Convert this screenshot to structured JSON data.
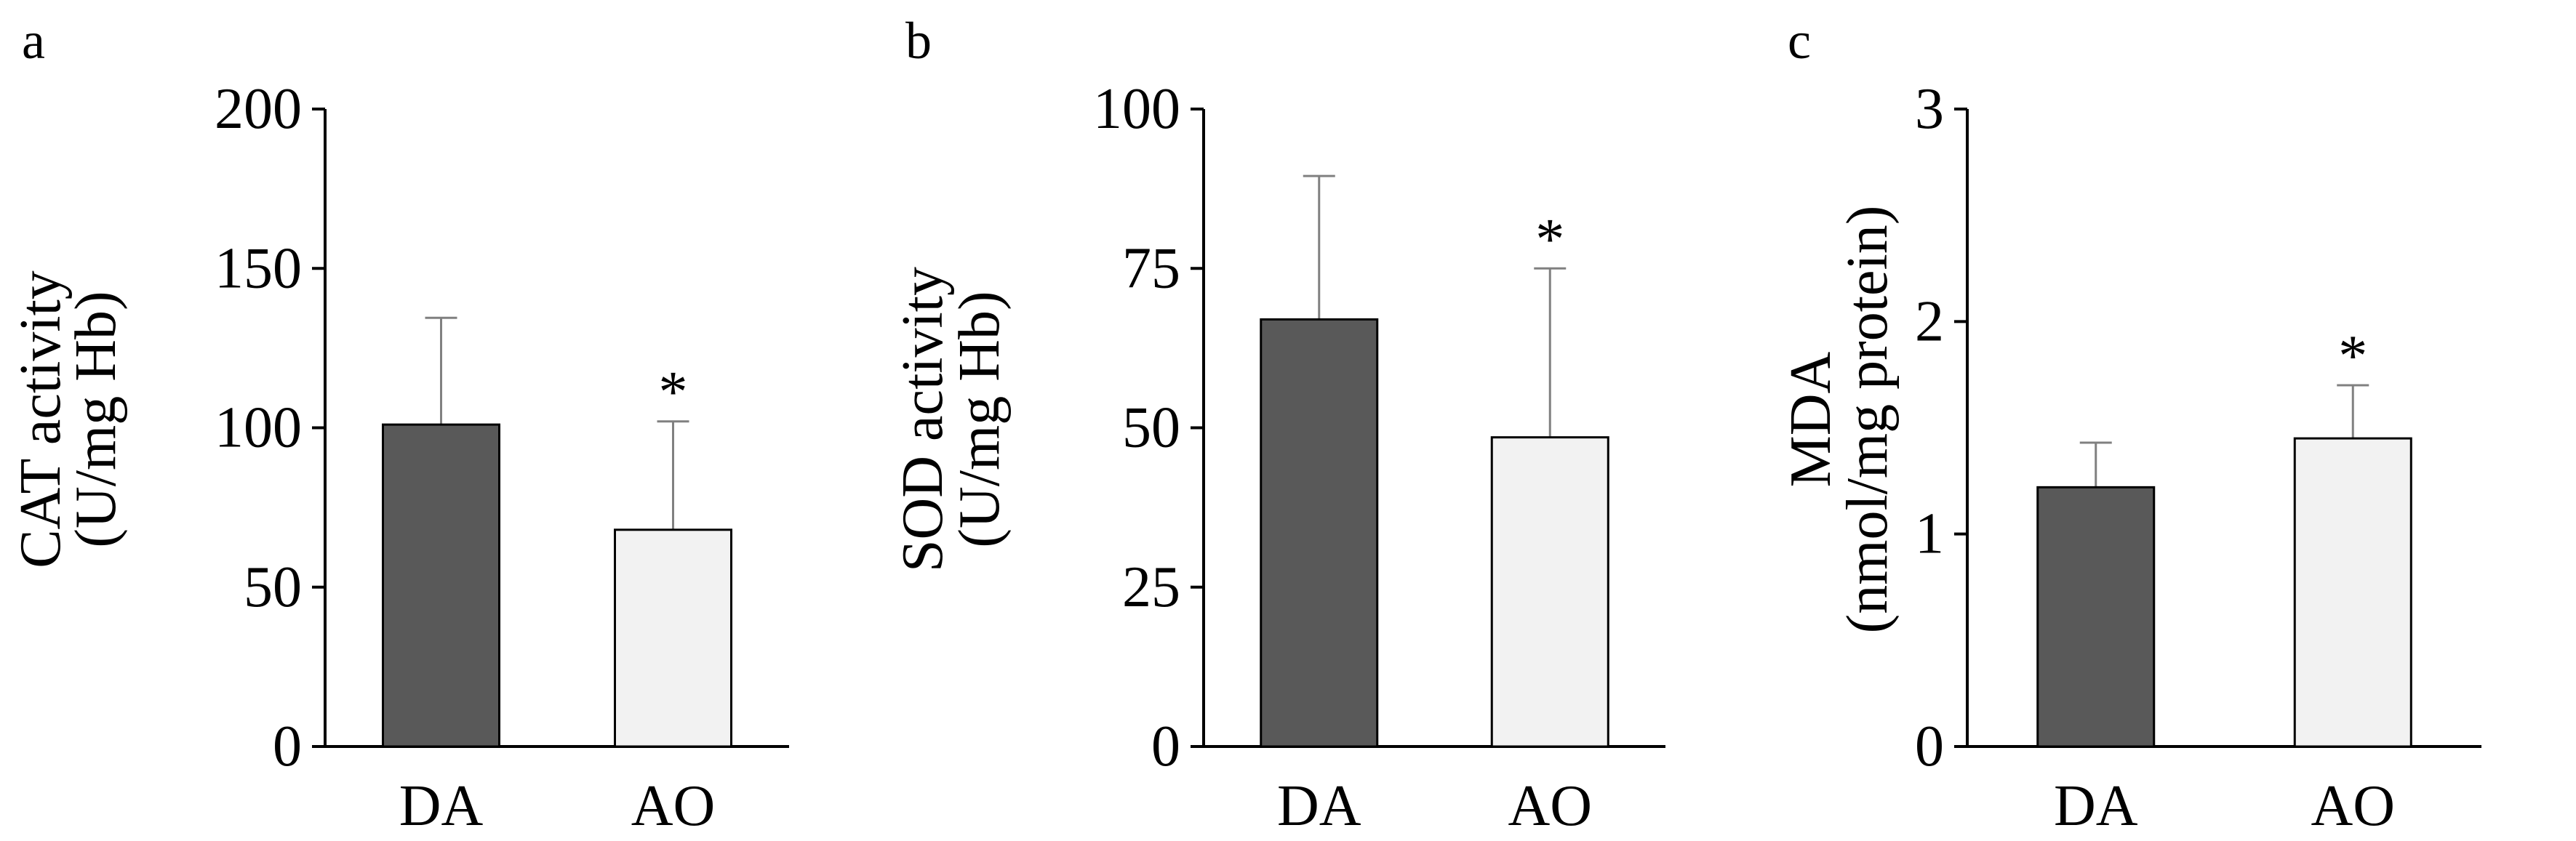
{
  "figure": {
    "background": "#ffffff",
    "bar_colors": {
      "DA": "#595959",
      "AO": "#f2f2f2"
    },
    "errorbar_color": "#808080",
    "axis_color": "#000000"
  },
  "chart_data": [
    {
      "type": "bar",
      "panel_label": "a",
      "ylabel_line1": "CAT activity",
      "ylabel_line2": "(U/mg Hb)",
      "categories": [
        "DA",
        "AO"
      ],
      "values": [
        101,
        68
      ],
      "errors": [
        33.5,
        34
      ],
      "significance": [
        "",
        "*"
      ],
      "ylim": [
        0,
        200
      ],
      "yticks": [
        0,
        50,
        100,
        150,
        200
      ],
      "ytick_labels": [
        "0",
        "50",
        "100",
        "150",
        "200"
      ]
    },
    {
      "type": "bar",
      "panel_label": "b",
      "ylabel_line1": "SOD activity",
      "ylabel_line2": "(U/mg Hb)",
      "categories": [
        "DA",
        "AO"
      ],
      "values": [
        67,
        48.5
      ],
      "errors": [
        22.5,
        26.5
      ],
      "significance": [
        "",
        "*"
      ],
      "ylim": [
        0,
        100
      ],
      "yticks": [
        0,
        25,
        50,
        75,
        100
      ],
      "ytick_labels": [
        "0",
        "25",
        "50",
        "75",
        "100"
      ]
    },
    {
      "type": "bar",
      "panel_label": "c",
      "ylabel_line1": "MDA",
      "ylabel_line2": "(nmol/mg protein)",
      "categories": [
        "DA",
        "AO"
      ],
      "values": [
        1.22,
        1.45
      ],
      "errors": [
        0.21,
        0.25
      ],
      "significance": [
        "",
        "*"
      ],
      "ylim": [
        0,
        3
      ],
      "yticks": [
        0,
        1,
        2,
        3
      ],
      "ytick_labels": [
        "0",
        "1",
        "2",
        "3"
      ]
    }
  ]
}
